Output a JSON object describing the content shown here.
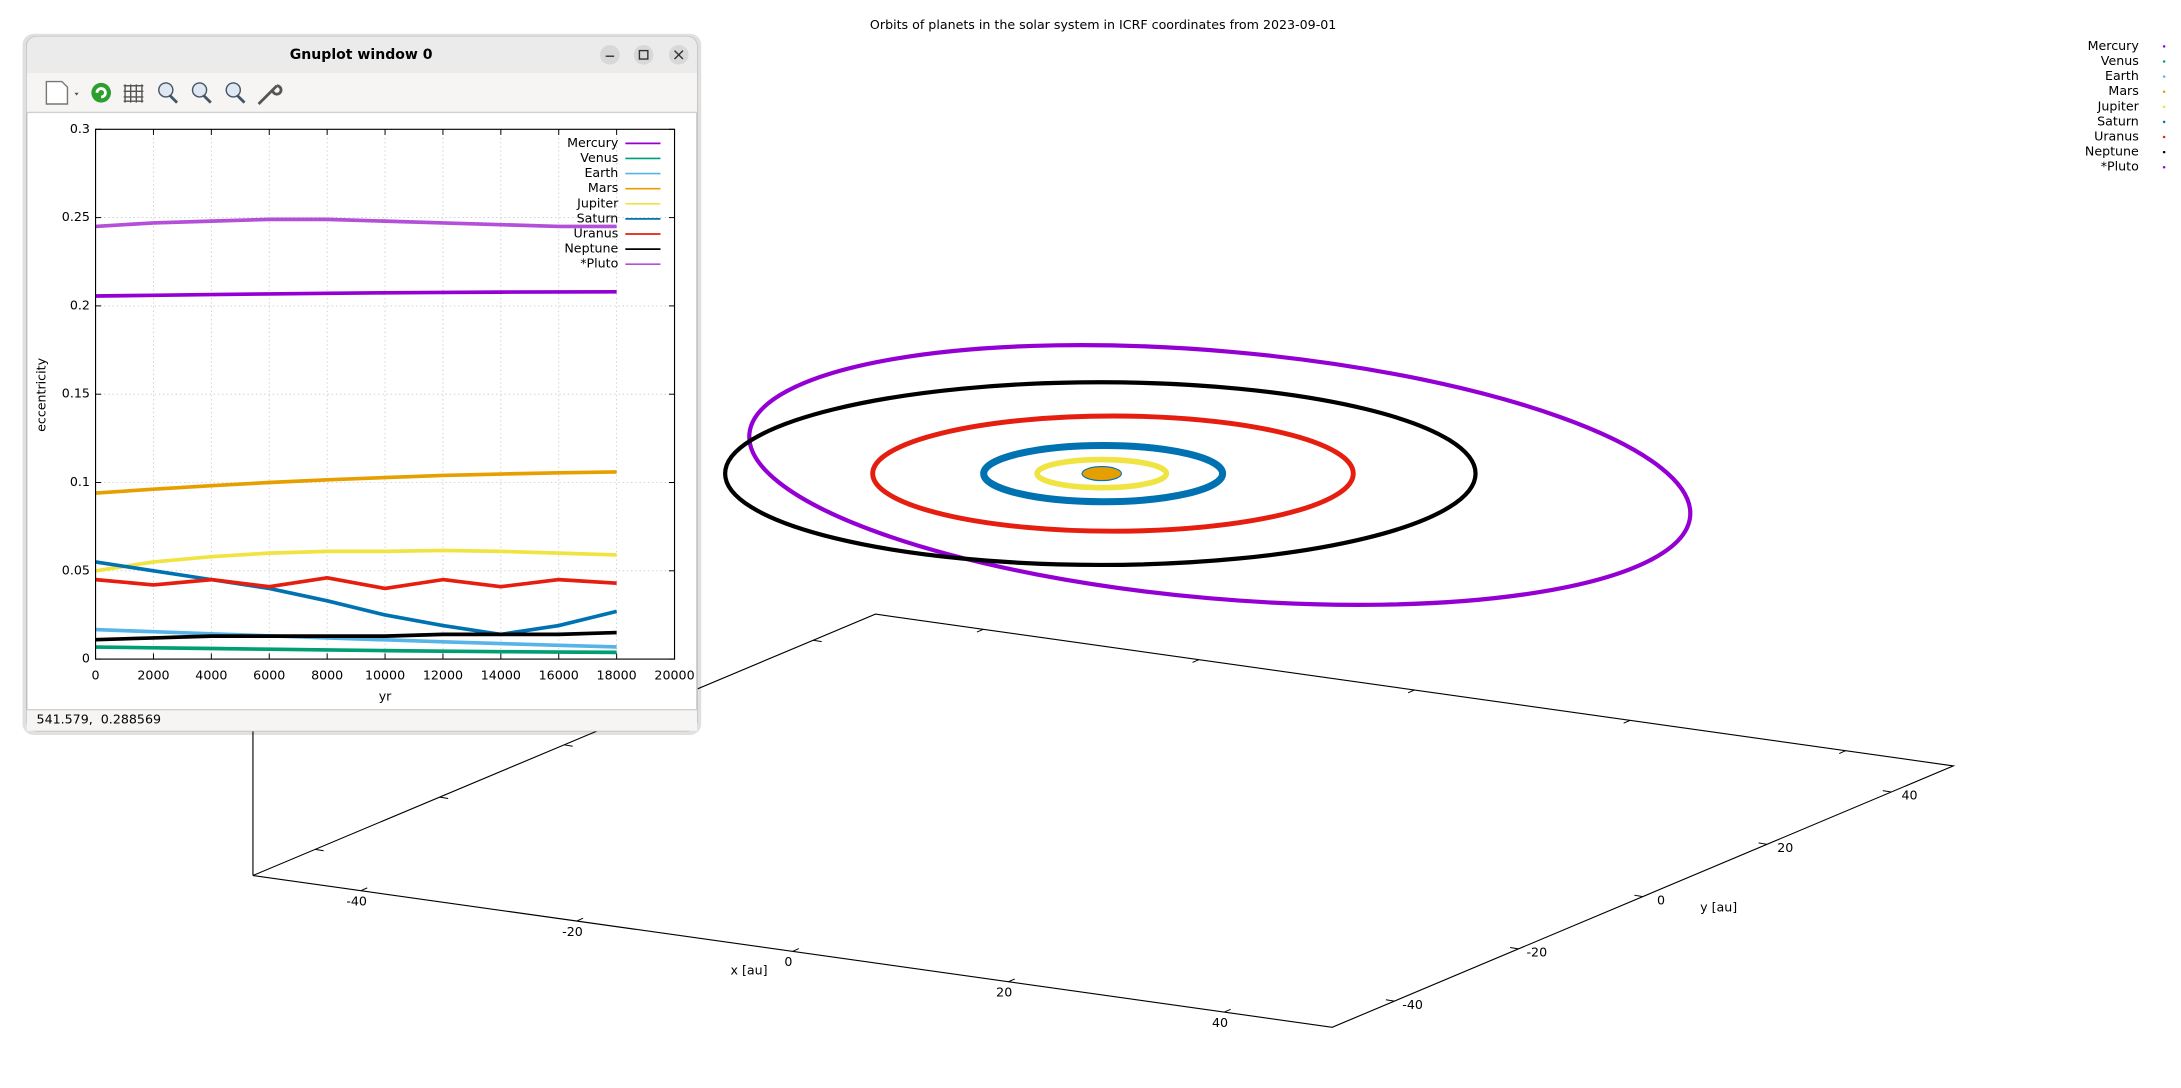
{
  "window": {
    "title": "Gnuplot window 0",
    "status": "541.579,  0.288569"
  },
  "chart_data": [
    {
      "type": "line",
      "ylabel": "eccentricity",
      "xlabel": "yr",
      "x": [
        0,
        2000,
        4000,
        6000,
        8000,
        10000,
        12000,
        14000,
        16000,
        18000
      ],
      "series": [
        {
          "name": "Mercury",
          "color": "#9400d3",
          "values": [
            0.2056,
            0.206,
            0.2064,
            0.2068,
            0.2071,
            0.2074,
            0.2076,
            0.2078,
            0.2079,
            0.208
          ]
        },
        {
          "name": "Venus",
          "color": "#009e73",
          "values": [
            0.0068,
            0.0064,
            0.006,
            0.0056,
            0.0052,
            0.0048,
            0.0045,
            0.0042,
            0.004,
            0.0038
          ]
        },
        {
          "name": "Earth",
          "color": "#56b4e9",
          "values": [
            0.0167,
            0.0155,
            0.0143,
            0.0132,
            0.012,
            0.0109,
            0.0098,
            0.0088,
            0.0078,
            0.0069
          ]
        },
        {
          "name": "Mars",
          "color": "#e69f00",
          "values": [
            0.094,
            0.0962,
            0.0982,
            0.1,
            0.1015,
            0.1028,
            0.104,
            0.1048,
            0.1055,
            0.106
          ]
        },
        {
          "name": "Jupiter",
          "color": "#f0e442",
          "values": [
            0.05,
            0.055,
            0.058,
            0.06,
            0.061,
            0.061,
            0.0615,
            0.061,
            0.06,
            0.059
          ]
        },
        {
          "name": "Saturn",
          "color": "#0072b2",
          "values": [
            0.055,
            0.05,
            0.045,
            0.04,
            0.033,
            0.025,
            0.019,
            0.014,
            0.019,
            0.027
          ]
        },
        {
          "name": "Uranus",
          "color": "#e51e10",
          "values": [
            0.045,
            0.042,
            0.045,
            0.041,
            0.046,
            0.04,
            0.045,
            0.041,
            0.045,
            0.043
          ]
        },
        {
          "name": "Neptune",
          "color": "#000000",
          "values": [
            0.011,
            0.012,
            0.013,
            0.013,
            0.013,
            0.013,
            0.014,
            0.014,
            0.014,
            0.015
          ]
        },
        {
          "name": "*Pluto",
          "color": "#b44fd8",
          "values": [
            0.245,
            0.247,
            0.248,
            0.249,
            0.249,
            0.248,
            0.247,
            0.246,
            0.245,
            0.245
          ]
        }
      ],
      "xlim": [
        0,
        20000
      ],
      "xticks": [
        0,
        2000,
        4000,
        6000,
        8000,
        10000,
        12000,
        14000,
        16000,
        18000,
        20000
      ],
      "ylim": [
        0,
        0.3
      ],
      "yticks": [
        0,
        0.05,
        0.1,
        0.15,
        0.2,
        0.25,
        0.3
      ],
      "grid": true,
      "legend": "top-right"
    },
    {
      "type": "orbit3d",
      "title": "Orbits of planets in the solar system in ICRF coordinates from 2023-09-01",
      "xlabel": "x [au]",
      "ylabel": "y [au]",
      "xlim": [
        -50,
        50
      ],
      "xticks": [
        -40,
        -20,
        0,
        20,
        40
      ],
      "ylim": [
        -50,
        50
      ],
      "yticks": [
        -40,
        -20,
        0,
        20,
        40
      ],
      "legend": "top-right",
      "series": [
        {
          "name": "Mercury",
          "color": "#9400d3"
        },
        {
          "name": "Venus",
          "color": "#009e73"
        },
        {
          "name": "Earth",
          "color": "#56b4e9"
        },
        {
          "name": "Mars",
          "color": "#e69f00"
        },
        {
          "name": "Jupiter",
          "color": "#f0e442"
        },
        {
          "name": "Saturn",
          "color": "#0072b2"
        },
        {
          "name": "Uranus",
          "color": "#e51e10"
        },
        {
          "name": "Neptune",
          "color": "#000000"
        },
        {
          "name": "*Pluto",
          "color": "#9400d3"
        }
      ]
    }
  ]
}
